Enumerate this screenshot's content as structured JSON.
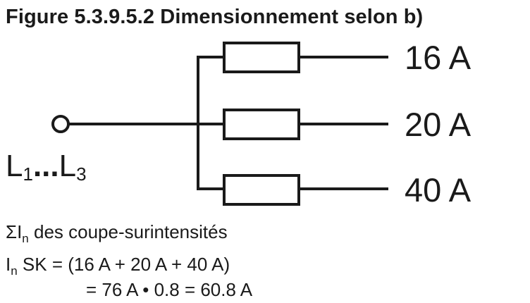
{
  "figure": {
    "title": "Figure 5.3.9.5.2  Dimensionnement selon b)"
  },
  "diagram": {
    "source_label": {
      "start_letter": "L",
      "start_index": "1",
      "ellipsis": "...",
      "end_letter": "L",
      "end_index": "3"
    },
    "branches": [
      {
        "rating": "16 A"
      },
      {
        "rating": "20 A"
      },
      {
        "rating": "40 A"
      }
    ]
  },
  "formula": {
    "sum_symbol": "ΣI",
    "sum_sub": "n",
    "sum_text": " des coupe-surintensités",
    "in_symbol": "I",
    "in_sub": "n",
    "in_text": " SK = (16 A + 20 A + 40 A)",
    "result_text": "= 76 A • 0.8 = 60.8 A"
  },
  "colors": {
    "ink": "#1a1a1a",
    "background": "#ffffff"
  }
}
